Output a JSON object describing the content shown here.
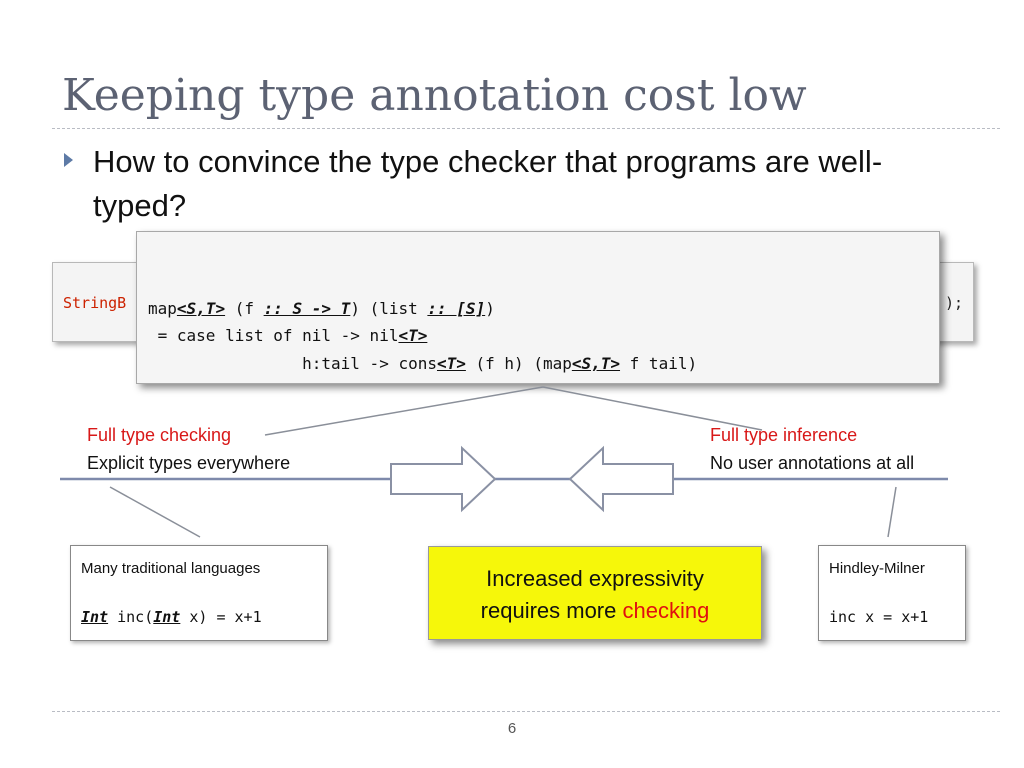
{
  "slide": {
    "title": "Keeping type annotation cost low",
    "bullet": "How to convince the type checker that programs are well-typed?",
    "page_number": "6"
  },
  "background_code": {
    "left_fragment": "StringB",
    "right_fragment": ");"
  },
  "code_popup": {
    "line1": {
      "a": "map",
      "b": "<S,T>",
      "c": " (",
      "d": "f ",
      "e": ":: S -> T",
      "f": ") (",
      "g": "list ",
      "h": ":: [S]",
      "i": ")"
    },
    "line2": {
      "a": " = case list of nil -> nil",
      "b": "<T>"
    },
    "line3": {
      "a": "                h:tail -> cons",
      "b": "<T>",
      "c": " (f h) (map",
      "d": "<S,T>",
      "e": " f tail)"
    }
  },
  "spectrum": {
    "left_heading": "Full type checking",
    "left_desc": "Explicit types everywhere",
    "right_heading": "Full type inference",
    "right_desc": "No user annotations at all"
  },
  "left_box": {
    "title": "Many traditional  languages",
    "code_a": "Int",
    "code_b": " inc(",
    "code_c": "Int",
    "code_d": " x) = x+1"
  },
  "right_box": {
    "title": "Hindley-Milner",
    "code": "inc x = x+1"
  },
  "highlight": {
    "line1": "Increased expressivity",
    "line2_prefix": "requires more ",
    "line2_emph": "checking"
  },
  "colors": {
    "title": "#5c6273",
    "accent_red": "#d81818",
    "highlight_bg": "#f6f70a",
    "spectrum_line": "#7e8aab",
    "arrow_outline": "#8a91a4"
  },
  "icons": {
    "bullet": "triangle-bullet-icon",
    "arrow_right": "arrow-right-icon",
    "arrow_left": "arrow-left-icon"
  }
}
